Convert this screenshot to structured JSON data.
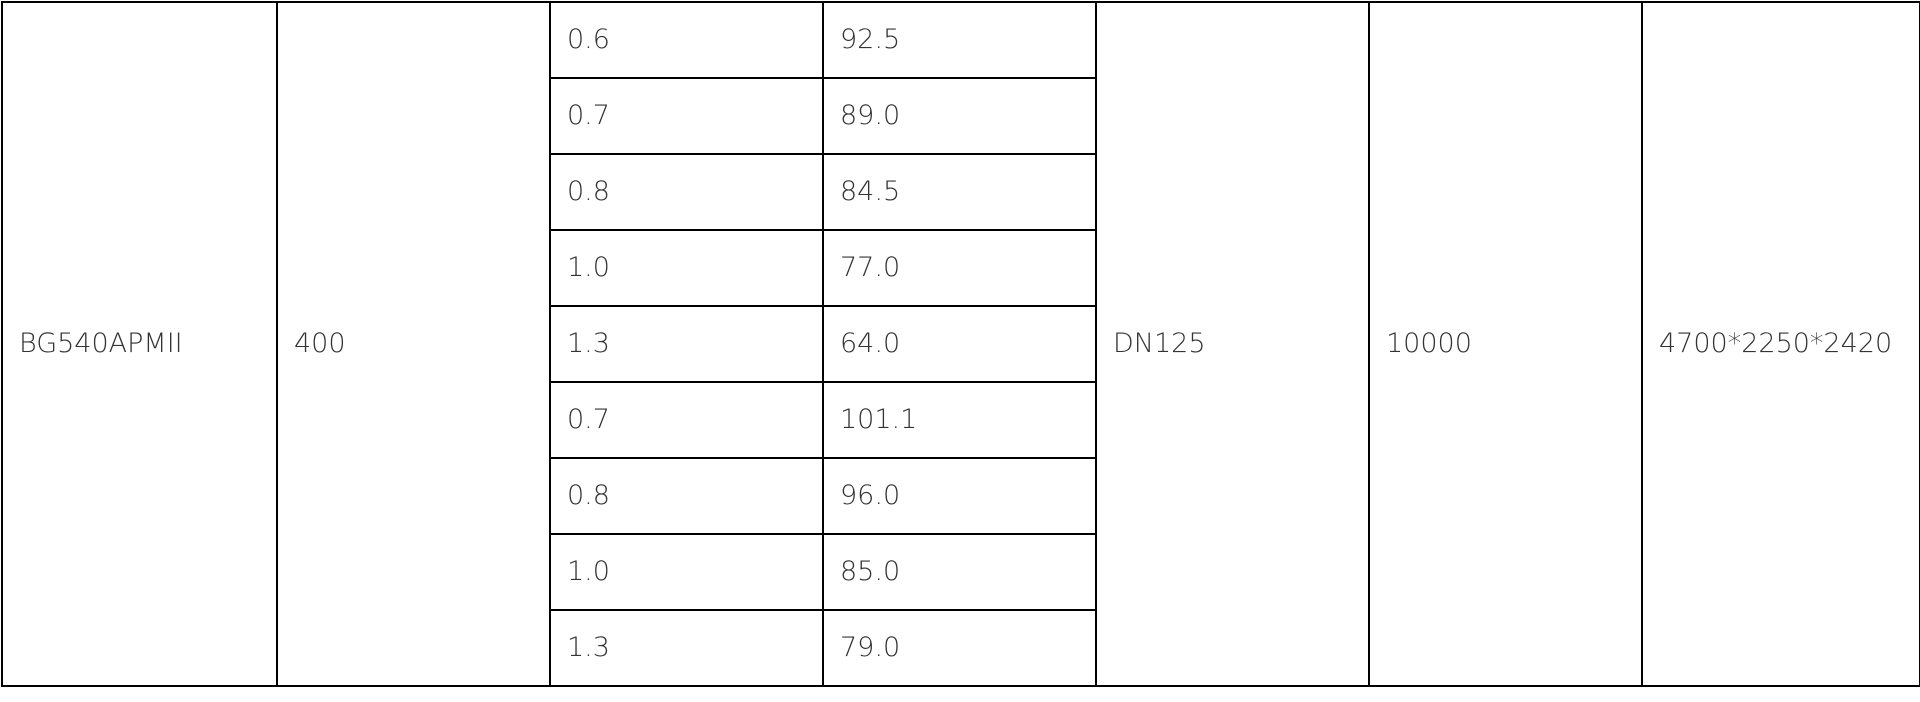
{
  "table": {
    "model": "BG540APMII",
    "power": "400",
    "rows": [
      {
        "pressure": "0.6",
        "flow": "92.5"
      },
      {
        "pressure": "0.7",
        "flow": "89.0"
      },
      {
        "pressure": "0.8",
        "flow": "84.5"
      },
      {
        "pressure": "1.0",
        "flow": "77.0"
      },
      {
        "pressure": "1.3",
        "flow": "64.0"
      },
      {
        "pressure": "0.7",
        "flow": "101.1"
      },
      {
        "pressure": "0.8",
        "flow": "96.0"
      },
      {
        "pressure": "1.0",
        "flow": "85.0"
      },
      {
        "pressure": "1.3",
        "flow": "79.0"
      }
    ],
    "outlet": "DN125",
    "weight": "10000",
    "dimensions": "4700*2250*2420"
  }
}
